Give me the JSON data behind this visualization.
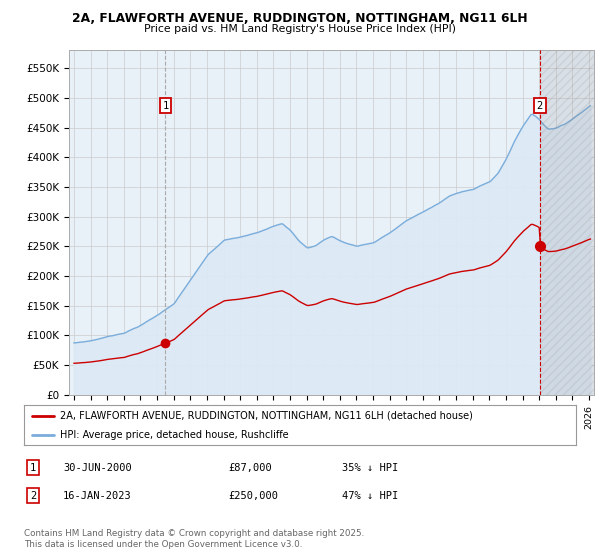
{
  "title1": "2A, FLAWFORTH AVENUE, RUDDINGTON, NOTTINGHAM, NG11 6LH",
  "title2": "Price paid vs. HM Land Registry's House Price Index (HPI)",
  "ylim": [
    0,
    580000
  ],
  "xlim_start": 1994.7,
  "xlim_end": 2026.3,
  "yticks": [
    0,
    50000,
    100000,
    150000,
    200000,
    250000,
    300000,
    350000,
    400000,
    450000,
    500000,
    550000
  ],
  "ytick_labels": [
    "£0",
    "£50K",
    "£100K",
    "£150K",
    "£200K",
    "£250K",
    "£300K",
    "£350K",
    "£400K",
    "£450K",
    "£500K",
    "£550K"
  ],
  "red_line_color": "#cc0000",
  "blue_line_color": "#7aaddb",
  "blue_fill_color": "#dce9f5",
  "grid_color": "#cccccc",
  "sale1_x": 2000.5,
  "sale1_y": 87000,
  "sale1_label": "1",
  "sale2_x": 2023.04,
  "sale2_y": 250000,
  "sale2_label": "2",
  "legend_red": "2A, FLAWFORTH AVENUE, RUDDINGTON, NOTTINGHAM, NG11 6LH (detached house)",
  "legend_blue": "HPI: Average price, detached house, Rushcliffe",
  "note1_label": "1",
  "note1_date": "30-JUN-2000",
  "note1_price": "£87,000",
  "note1_hpi": "35% ↓ HPI",
  "note2_label": "2",
  "note2_date": "16-JAN-2023",
  "note2_price": "£250,000",
  "note2_hpi": "47% ↓ HPI",
  "footer": "Contains HM Land Registry data © Crown copyright and database right 2025.\nThis data is licensed under the Open Government Licence v3.0."
}
